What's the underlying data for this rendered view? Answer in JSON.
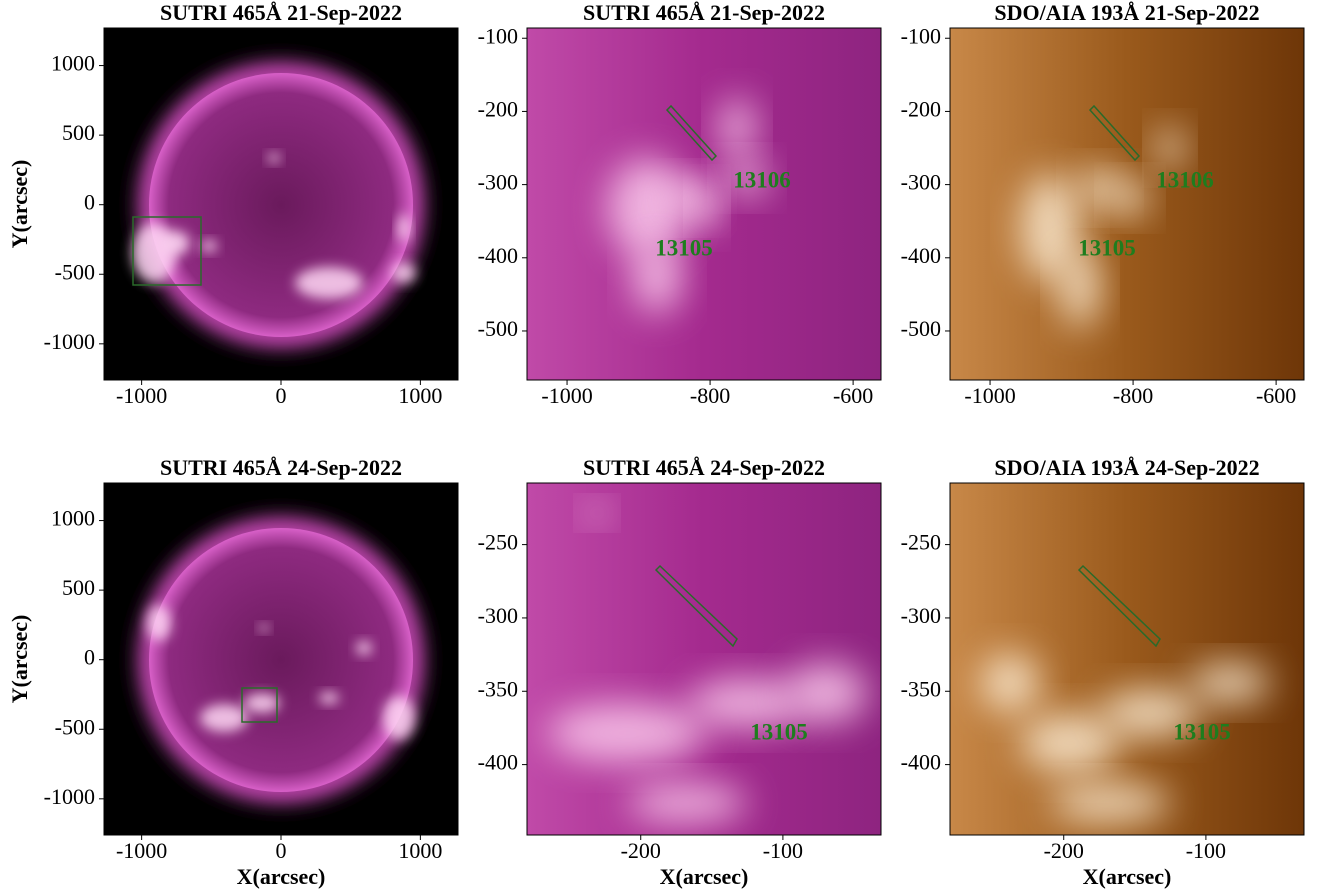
{
  "chart_data": [
    {
      "type": "image",
      "title": "SUTRI 465Å 21-Sep-2022",
      "ylabel": "Y(arcsec)",
      "xlim": [
        -1270,
        1270
      ],
      "ylim": [
        -1260,
        1270
      ],
      "xticks": [
        -1000,
        0,
        1000
      ],
      "yticks": [
        -1000,
        -500,
        0,
        500,
        1000
      ],
      "annotations": []
    },
    {
      "type": "image",
      "title": "SUTRI 465Å 21-Sep-2022",
      "xlim": [
        -1056,
        -561
      ],
      "ylim": [
        -567,
        -86
      ],
      "xticks": [
        -1000,
        -800,
        -600
      ],
      "yticks": [
        -500,
        -400,
        -300,
        -200,
        -100
      ],
      "annotations": [
        "13106",
        "13105"
      ]
    },
    {
      "type": "image",
      "title": "SDO/AIA 193Å 21-Sep-2022",
      "xlim": [
        -1056,
        -561
      ],
      "ylim": [
        -567,
        -86
      ],
      "xticks": [
        -1000,
        -800,
        -600
      ],
      "yticks": [
        -500,
        -400,
        -300,
        -200,
        -100
      ],
      "annotations": [
        "13106",
        "13105"
      ]
    },
    {
      "type": "image",
      "title": "SUTRI 465Å 24-Sep-2022",
      "ylabel": "Y(arcsec)",
      "xlabel": "X(arcsec)",
      "xlim": [
        -1270,
        1270
      ],
      "ylim": [
        -1260,
        1270
      ],
      "xticks": [
        -1000,
        0,
        1000
      ],
      "yticks": [
        -1000,
        -500,
        0,
        500,
        1000
      ],
      "annotations": []
    },
    {
      "type": "image",
      "title": "SUTRI 465Å 24-Sep-2022",
      "xlabel": "X(arcsec)",
      "xlim": [
        -280,
        -31
      ],
      "ylim": [
        -448,
        -208
      ],
      "xticks": [
        -200,
        -100
      ],
      "yticks": [
        -400,
        -350,
        -300,
        -250
      ],
      "annotations": [
        "13105"
      ]
    },
    {
      "type": "image",
      "title": "SDO/AIA 193Å 24-Sep-2022",
      "xlabel": "X(arcsec)",
      "xlim": [
        -280,
        -31
      ],
      "ylim": [
        -448,
        -208
      ],
      "xticks": [
        -200,
        -100
      ],
      "yticks": [
        -400,
        -350,
        -300,
        -250
      ],
      "annotations": [
        "13105"
      ]
    }
  ]
}
